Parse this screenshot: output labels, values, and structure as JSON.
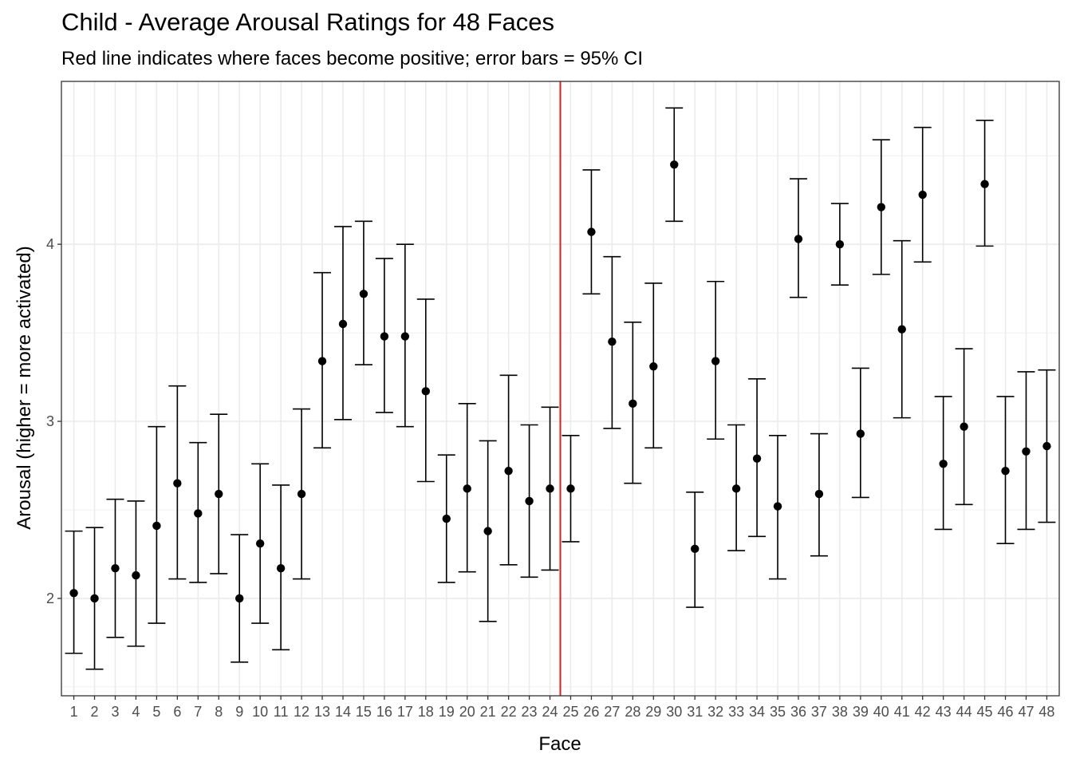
{
  "chart_data": {
    "type": "scatter",
    "title": "Child - Average Arousal Ratings for 48 Faces",
    "subtitle": "Red line indicates where faces become positive; error bars = 95% CI",
    "xlabel": "Face",
    "ylabel": "Arousal (higher = more activated)",
    "ylim": [
      1.45,
      4.92
    ],
    "yticks": [
      2,
      3,
      4
    ],
    "grid": true,
    "vline_x": 24.5,
    "vline_color": "#e41a1c",
    "point_color": "#000000",
    "categories": [
      "1",
      "2",
      "3",
      "4",
      "5",
      "6",
      "7",
      "8",
      "9",
      "10",
      "11",
      "12",
      "13",
      "14",
      "15",
      "16",
      "17",
      "18",
      "19",
      "20",
      "21",
      "22",
      "23",
      "24",
      "25",
      "26",
      "27",
      "28",
      "29",
      "30",
      "31",
      "32",
      "33",
      "34",
      "35",
      "36",
      "37",
      "38",
      "39",
      "40",
      "41",
      "42",
      "43",
      "44",
      "45",
      "46",
      "47",
      "48"
    ],
    "series": [
      {
        "values": [
          2.03,
          2.0,
          2.17,
          2.13,
          2.41,
          2.65,
          2.48,
          2.59,
          2.0,
          2.31,
          2.17,
          2.59,
          3.34,
          3.55,
          3.72,
          3.48,
          3.48,
          3.17,
          2.45,
          2.62,
          2.38,
          2.72,
          2.55,
          2.62,
          2.62,
          4.07,
          3.45,
          3.1,
          3.31,
          4.45,
          2.28,
          3.34,
          2.62,
          2.79,
          2.52,
          4.03,
          2.59,
          4.0,
          2.93,
          4.21,
          3.52,
          4.28,
          2.76,
          2.97,
          4.34,
          2.72,
          2.83,
          2.86
        ],
        "ci_low": [
          1.69,
          1.6,
          1.78,
          1.73,
          1.86,
          2.11,
          2.09,
          2.14,
          1.64,
          1.86,
          1.71,
          2.11,
          2.85,
          3.01,
          3.32,
          3.05,
          2.97,
          2.66,
          2.09,
          2.15,
          1.87,
          2.19,
          2.12,
          2.16,
          2.32,
          3.72,
          2.96,
          2.65,
          2.85,
          4.13,
          1.95,
          2.9,
          2.27,
          2.35,
          2.11,
          3.7,
          2.24,
          3.77,
          2.57,
          3.83,
          3.02,
          3.9,
          2.39,
          2.53,
          3.99,
          2.31,
          2.39,
          2.43
        ],
        "ci_high": [
          2.38,
          2.4,
          2.56,
          2.55,
          2.97,
          3.2,
          2.88,
          3.04,
          2.36,
          2.76,
          2.64,
          3.07,
          3.84,
          4.1,
          4.13,
          3.92,
          4.0,
          3.69,
          2.81,
          3.1,
          2.89,
          3.26,
          2.98,
          3.08,
          2.92,
          4.42,
          3.93,
          3.56,
          3.78,
          4.77,
          2.6,
          3.79,
          2.98,
          3.24,
          2.92,
          4.37,
          2.93,
          4.23,
          3.3,
          4.59,
          4.02,
          4.66,
          3.14,
          3.41,
          4.7,
          3.14,
          3.28,
          3.29
        ]
      }
    ]
  }
}
